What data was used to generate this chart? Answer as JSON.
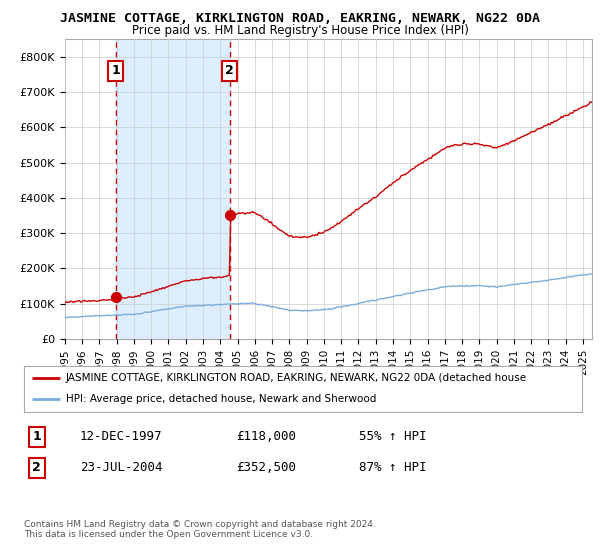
{
  "title": "JASMINE COTTAGE, KIRKLINGTON ROAD, EAKRING, NEWARK, NG22 0DA",
  "subtitle": "Price paid vs. HM Land Registry's House Price Index (HPI)",
  "ylim": [
    0,
    850000
  ],
  "yticks": [
    0,
    100000,
    200000,
    300000,
    400000,
    500000,
    600000,
    700000,
    800000
  ],
  "ytick_labels": [
    "£0",
    "£100K",
    "£200K",
    "£300K",
    "£400K",
    "£500K",
    "£600K",
    "£700K",
    "£800K"
  ],
  "xlim_start": 1995.0,
  "xlim_end": 2025.5,
  "purchase1_date": 1997.95,
  "purchase1_price": 118000,
  "purchase2_date": 2004.55,
  "purchase2_price": 352500,
  "hpi_color": "#7aaddc",
  "price_color": "#cc0000",
  "shade_color": "#ddeeff",
  "legend_price_label": "JASMINE COTTAGE, KIRKLINGTON ROAD, EAKRING, NEWARK, NG22 0DA (detached house",
  "legend_hpi_label": "HPI: Average price, detached house, Newark and Sherwood",
  "table_rows": [
    {
      "num": "1",
      "date": "12-DEC-1997",
      "price": "£118,000",
      "hpi": "55% ↑ HPI"
    },
    {
      "num": "2",
      "date": "23-JUL-2004",
      "price": "£352,500",
      "hpi": "87% ↑ HPI"
    }
  ],
  "footer": "Contains HM Land Registry data © Crown copyright and database right 2024.\nThis data is licensed under the Open Government Licence v3.0.",
  "bg_color": "#ffffff",
  "grid_color": "#cccccc"
}
